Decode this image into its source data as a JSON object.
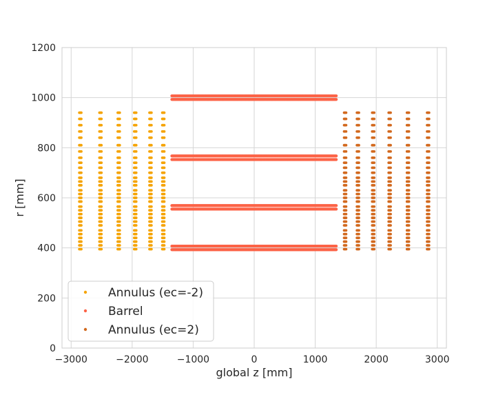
{
  "chart_data": {
    "type": "scatter",
    "xlabel": "global z [mm]",
    "ylabel": "r [mm]",
    "xlim": [
      -3150,
      3150
    ],
    "ylim": [
      0,
      1200
    ],
    "xticks": [
      -3000,
      -2000,
      -1000,
      0,
      1000,
      2000,
      3000
    ],
    "xtick_labels": [
      "−3000",
      "−2000",
      "−1000",
      "0",
      "1000",
      "2000",
      "3000"
    ],
    "yticks": [
      0,
      200,
      400,
      600,
      800,
      1000,
      1200
    ],
    "ytick_labels": [
      "0",
      "200",
      "400",
      "600",
      "800",
      "1000",
      "1200"
    ],
    "grid": true,
    "legend_position": "lower-left",
    "series": [
      {
        "name": "Annulus (ec=-2)",
        "color": "#f5a300",
        "kind": "disk-columns",
        "z": [
          -2850,
          -2520,
          -2220,
          -1950,
          -1700,
          -1490
        ],
        "r": [
          395,
          410,
          425,
          440,
          455,
          470,
          490,
          505,
          520,
          535,
          550,
          565,
          585,
          600,
          615,
          630,
          650,
          665,
          680,
          700,
          720,
          740,
          760,
          785,
          810,
          840,
          865,
          890,
          915,
          940
        ],
        "r_limits": [
          [
            395,
            940
          ],
          [
            395,
            940
          ],
          [
            395,
            940
          ],
          [
            395,
            940
          ],
          [
            395,
            940
          ],
          [
            395,
            940
          ]
        ]
      },
      {
        "name": "Barrel",
        "color": "#fc6347",
        "kind": "barrel-layers",
        "z_range": [
          -1350,
          1350
        ],
        "r": [
          400,
          562,
          760,
          1000
        ]
      },
      {
        "name": "Annulus (ec=2)",
        "color": "#d2691e",
        "kind": "disk-columns",
        "z": [
          1490,
          1700,
          1950,
          2220,
          2520,
          2850
        ],
        "r": [
          395,
          410,
          425,
          440,
          455,
          470,
          490,
          505,
          520,
          535,
          550,
          565,
          585,
          600,
          615,
          630,
          650,
          665,
          680,
          700,
          720,
          740,
          760,
          785,
          810,
          840,
          865,
          890,
          915,
          940
        ],
        "r_limits": [
          [
            395,
            940
          ],
          [
            395,
            940
          ],
          [
            395,
            940
          ],
          [
            395,
            940
          ],
          [
            395,
            940
          ],
          [
            395,
            940
          ]
        ]
      }
    ]
  }
}
